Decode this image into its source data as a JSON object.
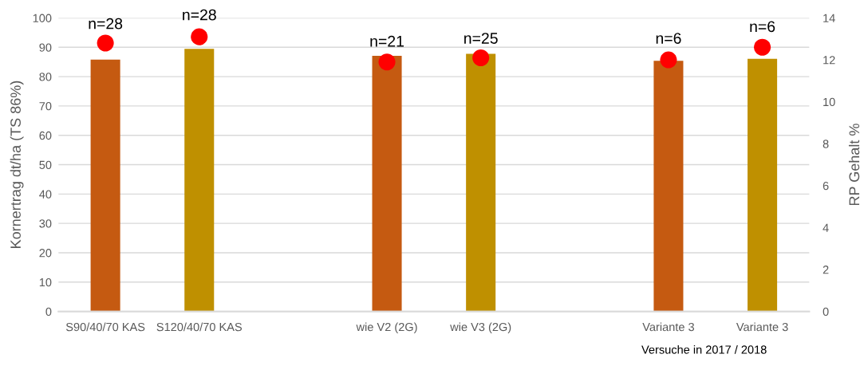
{
  "chart_data": {
    "type": "bar",
    "categories": [
      "S90/40/70 KAS",
      "S120/40/70 KAS",
      null,
      "wie V2 (2G)",
      "wie V3 (2G)",
      null,
      "Variante 3",
      "Variante 3"
    ],
    "series": [
      {
        "colors": [
          "#c55a11",
          "#bf9000",
          null,
          "#c55a11",
          "#bf9000",
          null,
          "#c55a11",
          "#bf9000"
        ],
        "values": [
          85.8,
          89.5,
          null,
          87.1,
          87.8,
          null,
          85.4,
          86.1
        ]
      },
      {
        "type": "scatter",
        "axis": "y2",
        "color": "#ff0000",
        "marker": "circle",
        "values": [
          12.8,
          13.1,
          null,
          11.9,
          12.1,
          null,
          12.0,
          12.6
        ]
      }
    ],
    "annotations": [
      {
        "text": "n=28",
        "x": "S90/40/70 KAS",
        "y": 91
      },
      {
        "text": "n=28",
        "x": "S120/40/70 KAS",
        "y": 94
      },
      {
        "text": "n=21",
        "x": "wie V2 (2G)",
        "y": 85
      },
      {
        "text": "n=25",
        "x": "wie V3 (2G)",
        "y": 86
      },
      {
        "text": "n=6",
        "x": "Variante 3",
        "y": 86
      },
      "n=6"
    ],
    "ylabel": "Kornertrag dt/ha (TS 86%)",
    "y2label": "RP Gehalt %",
    "xlabel": "Versuche in 2017 / 2018",
    "ylim": [
      0,
      100
    ],
    "yticks": [
      0,
      10,
      20,
      30,
      40,
      50,
      60,
      70,
      80,
      90,
      100
    ],
    "y2lim": [
      0,
      14
    ],
    "y2ticks": [
      0,
      2,
      4,
      6,
      8,
      10,
      12,
      14
    ],
    "grid": "y",
    "legend": false
  }
}
